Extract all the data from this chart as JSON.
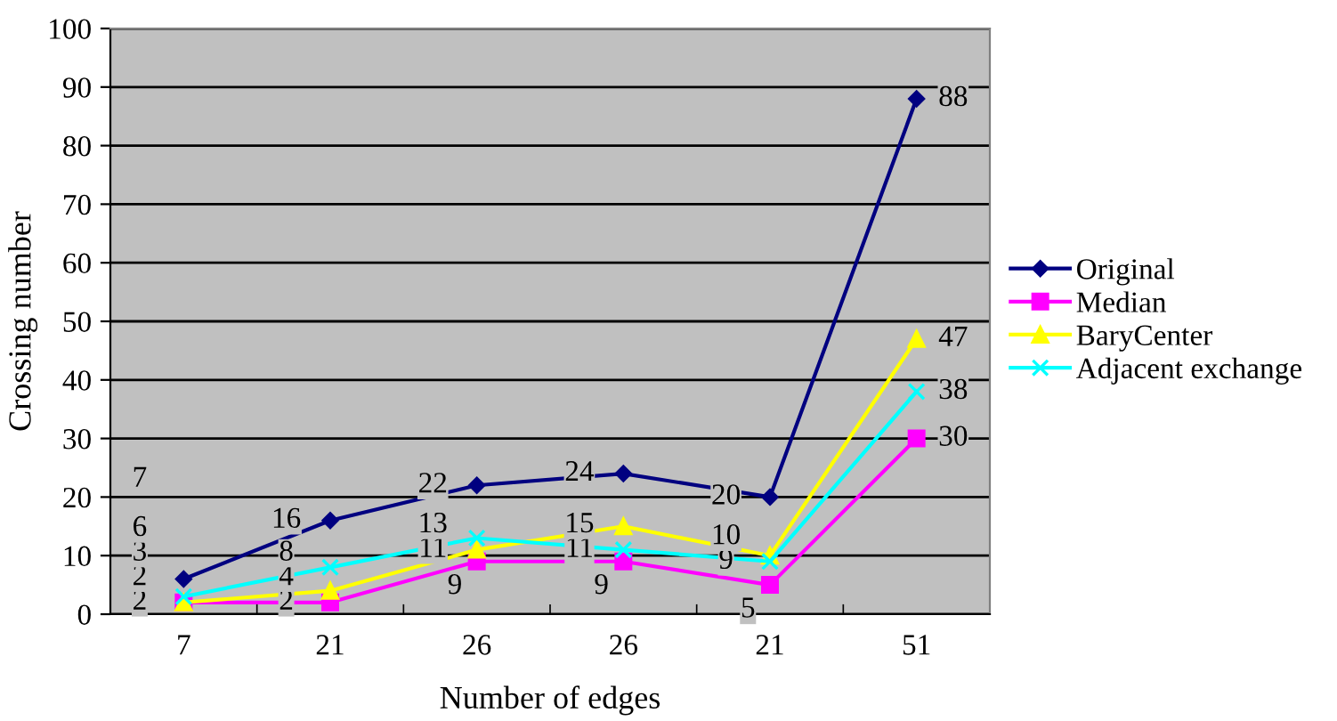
{
  "chart_data": {
    "type": "line",
    "xlabel": "Number of edges",
    "ylabel": "Crossing number",
    "categories": [
      "7",
      "21",
      "26",
      "26",
      "21",
      "51"
    ],
    "ylim": [
      0,
      100
    ],
    "yticks": [
      0,
      10,
      20,
      30,
      40,
      50,
      60,
      70,
      80,
      90,
      100
    ],
    "grid": "y",
    "legend": "right",
    "data_labels": true,
    "annotations": [
      "7"
    ],
    "series": [
      {
        "name": "Original",
        "color": "#000080",
        "marker": "diamond",
        "values": [
          6,
          16,
          22,
          24,
          20,
          88
        ]
      },
      {
        "name": "Median",
        "color": "#ff00ff",
        "marker": "square",
        "values": [
          2,
          2,
          9,
          9,
          5,
          30
        ]
      },
      {
        "name": "BaryCenter",
        "color": "#ffff00",
        "marker": "triangle",
        "values": [
          2,
          4,
          11,
          15,
          10,
          47
        ]
      },
      {
        "name": "Adjacent exchange",
        "color": "#00ffff",
        "marker": "cross",
        "values": [
          3,
          8,
          13,
          11,
          9,
          38
        ]
      }
    ]
  }
}
